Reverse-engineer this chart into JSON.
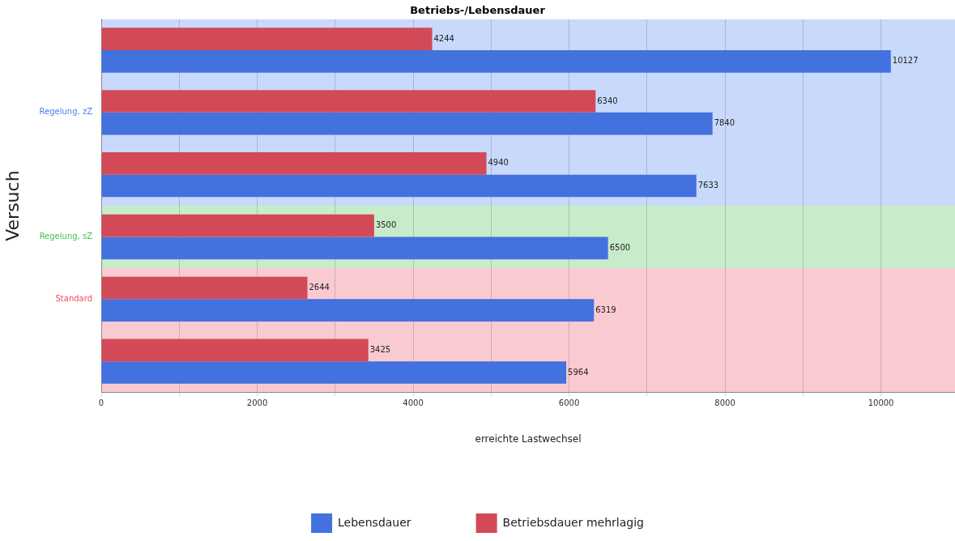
{
  "chart_data": {
    "type": "bar",
    "orientation": "horizontal",
    "title": "Betriebs-/Lebensdauer",
    "xlabel": "erreichte Lastwechsel",
    "ylabel": "Versuch",
    "categories": [
      null,
      "Regelung, zZ",
      null,
      "Regelung, sZ",
      "Standard",
      null
    ],
    "series": [
      {
        "name": "Lebensdauer",
        "color": "#4371de",
        "values": [
          10127,
          7840,
          7633,
          6500,
          6319,
          5964
        ]
      },
      {
        "name": "Betriebsdauer mehrlagig",
        "color": "#d24a57",
        "values": [
          4244,
          6340,
          4940,
          3500,
          2644,
          3425
        ]
      }
    ],
    "bands": [
      {
        "axis": "y",
        "from": "Regelung, sZ",
        "to": "Regelung, sZ",
        "color": "#c8ecca"
      }
    ],
    "xlim": [
      0,
      10950
    ],
    "xticks": [
      0,
      {
        "value": 1000,
        "label": null
      },
      2000,
      {
        "value": 3000,
        "label": null
      },
      4000,
      {
        "value": 5000,
        "label": null
      },
      6000,
      {
        "value": 7000,
        "label": null
      },
      8000,
      {
        "value": 9000,
        "label": null
      },
      10000
    ],
    "grid": true,
    "legend": "bottom",
    "data_labels": true
  }
}
